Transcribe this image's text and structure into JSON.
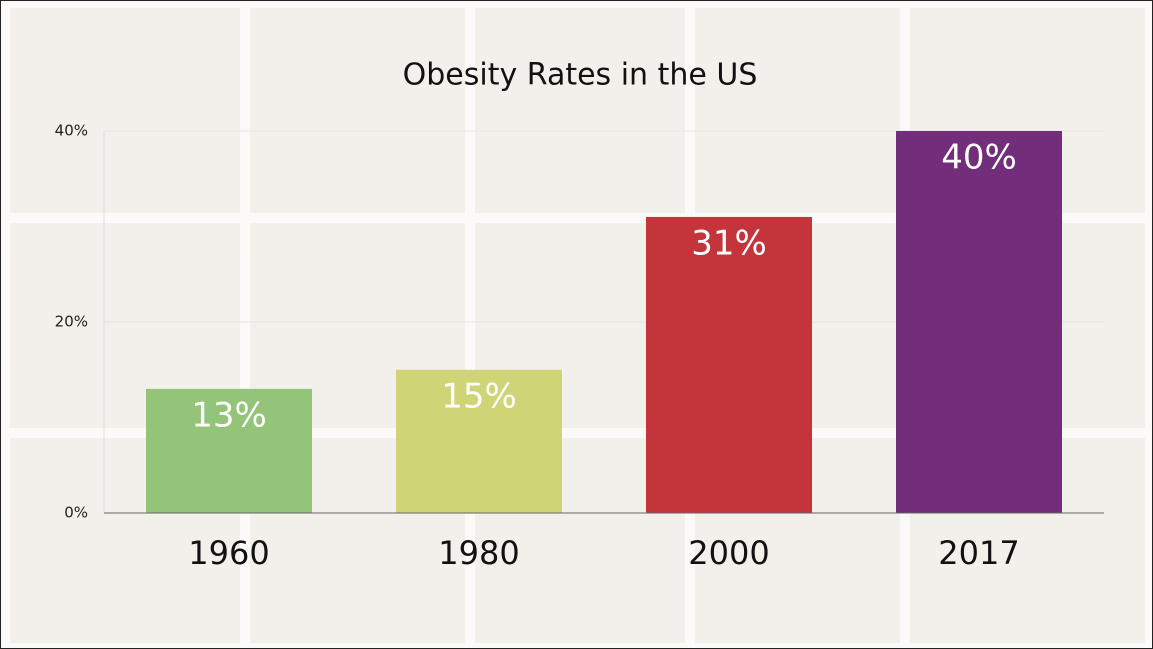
{
  "chart_data": {
    "type": "bar",
    "title": "Obesity Rates in the US",
    "categories": [
      "1960",
      "1980",
      "2000",
      "2017"
    ],
    "values": [
      13,
      15,
      31,
      40
    ],
    "value_labels": [
      "13%",
      "15%",
      "31%",
      "40%"
    ],
    "colors": [
      "#93c47a",
      "#cfd477",
      "#c4353b",
      "#722d7b"
    ],
    "ylim": [
      0,
      40
    ],
    "yticks": [
      {
        "value": 0,
        "label": "0%"
      },
      {
        "value": 20,
        "label": "20%"
      },
      {
        "value": 40,
        "label": "40%"
      }
    ],
    "grid": true
  }
}
